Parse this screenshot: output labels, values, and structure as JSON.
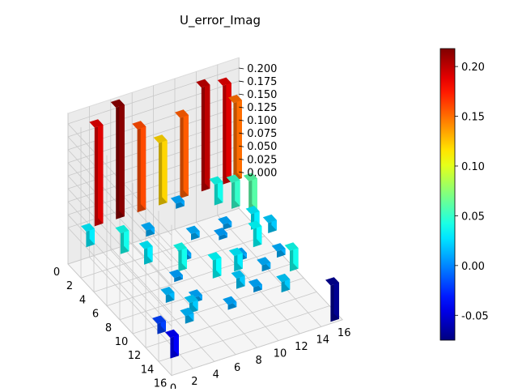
{
  "chart_data": {
    "type": "bar3d",
    "title": "U_error_Imag",
    "xlabel": "",
    "ylabel": "",
    "zlabel": "",
    "x_ticks": [
      "0",
      "2",
      "4",
      "6",
      "8",
      "10",
      "12",
      "14",
      "16"
    ],
    "y_ticks": [
      "0",
      "2",
      "4",
      "6",
      "8",
      "10",
      "12",
      "14",
      "16"
    ],
    "z_ticks": [
      "0.000",
      "0.025",
      "0.050",
      "0.075",
      "0.100",
      "0.125",
      "0.150",
      "0.175",
      "0.200"
    ],
    "xlim": [
      0,
      16
    ],
    "ylim": [
      0,
      16
    ],
    "zlim": [
      -0.07,
      0.22
    ],
    "colorbar": {
      "colormap": "jet",
      "min": -0.075,
      "max": 0.218,
      "ticks": [
        "-0.05",
        "0.00",
        "0.05",
        "0.10",
        "0.15",
        "0.20"
      ],
      "tick_values": [
        -0.05,
        0.0,
        0.05,
        0.1,
        0.15,
        0.2
      ]
    },
    "grid": true,
    "bars": [
      {
        "x": 0,
        "y": 2,
        "z": 0.19
      },
      {
        "x": 0,
        "y": 4,
        "z": 0.215
      },
      {
        "x": 0,
        "y": 6,
        "z": 0.16
      },
      {
        "x": 0,
        "y": 8,
        "z": 0.12
      },
      {
        "x": 0,
        "y": 10,
        "z": 0.155
      },
      {
        "x": 0,
        "y": 12,
        "z": 0.2
      },
      {
        "x": 0,
        "y": 14,
        "z": 0.19
      },
      {
        "x": 0,
        "y": 15,
        "z": 0.15
      },
      {
        "x": 15,
        "y": 15,
        "z": -0.07
      },
      {
        "x": 15,
        "y": 0,
        "z": -0.04
      },
      {
        "x": 13,
        "y": 0,
        "z": -0.02
      },
      {
        "x": 2,
        "y": 0,
        "z": 0.03
      },
      {
        "x": 4,
        "y": 2,
        "z": 0.04
      },
      {
        "x": 6,
        "y": 3,
        "z": 0.03
      },
      {
        "x": 8,
        "y": 5,
        "z": 0.04
      },
      {
        "x": 10,
        "y": 7,
        "z": 0.035
      },
      {
        "x": 10,
        "y": 9,
        "z": 0.03
      },
      {
        "x": 12,
        "y": 8,
        "z": 0.02
      },
      {
        "x": 14,
        "y": 11,
        "z": 0.02
      },
      {
        "x": 12,
        "y": 13,
        "z": 0.04
      },
      {
        "x": 4,
        "y": 14,
        "z": 0.06
      },
      {
        "x": 3,
        "y": 13,
        "z": 0.05
      },
      {
        "x": 6,
        "y": 13,
        "z": 0.03
      },
      {
        "x": 2,
        "y": 12,
        "z": 0.04
      },
      {
        "x": 8,
        "y": 12,
        "z": 0.035
      },
      {
        "x": 7,
        "y": 14,
        "z": 0.02
      },
      {
        "x": 13,
        "y": 3,
        "z": 0.02
      },
      {
        "x": 11,
        "y": 2,
        "z": 0.015
      },
      {
        "x": 14,
        "y": 6,
        "z": 0.01
      },
      {
        "x": 9,
        "y": 10,
        "z": 0.01
      },
      {
        "x": 5,
        "y": 8,
        "z": 0.012
      },
      {
        "x": 7,
        "y": 6,
        "z": 0.01
      },
      {
        "x": 9,
        "y": 4,
        "z": 0.008
      },
      {
        "x": 3,
        "y": 5,
        "z": 0.012
      },
      {
        "x": 1,
        "y": 9,
        "z": 0.01
      },
      {
        "x": 5,
        "y": 11,
        "z": 0.01
      },
      {
        "x": 11,
        "y": 11,
        "z": 0.012
      },
      {
        "x": 13,
        "y": 9,
        "z": 0.01
      },
      {
        "x": 14,
        "y": 2,
        "z": 0.015
      },
      {
        "x": 12,
        "y": 4,
        "z": 0.01
      },
      {
        "x": 10,
        "y": 13,
        "z": 0.012
      },
      {
        "x": 6,
        "y": 10,
        "z": 0.008
      }
    ]
  }
}
